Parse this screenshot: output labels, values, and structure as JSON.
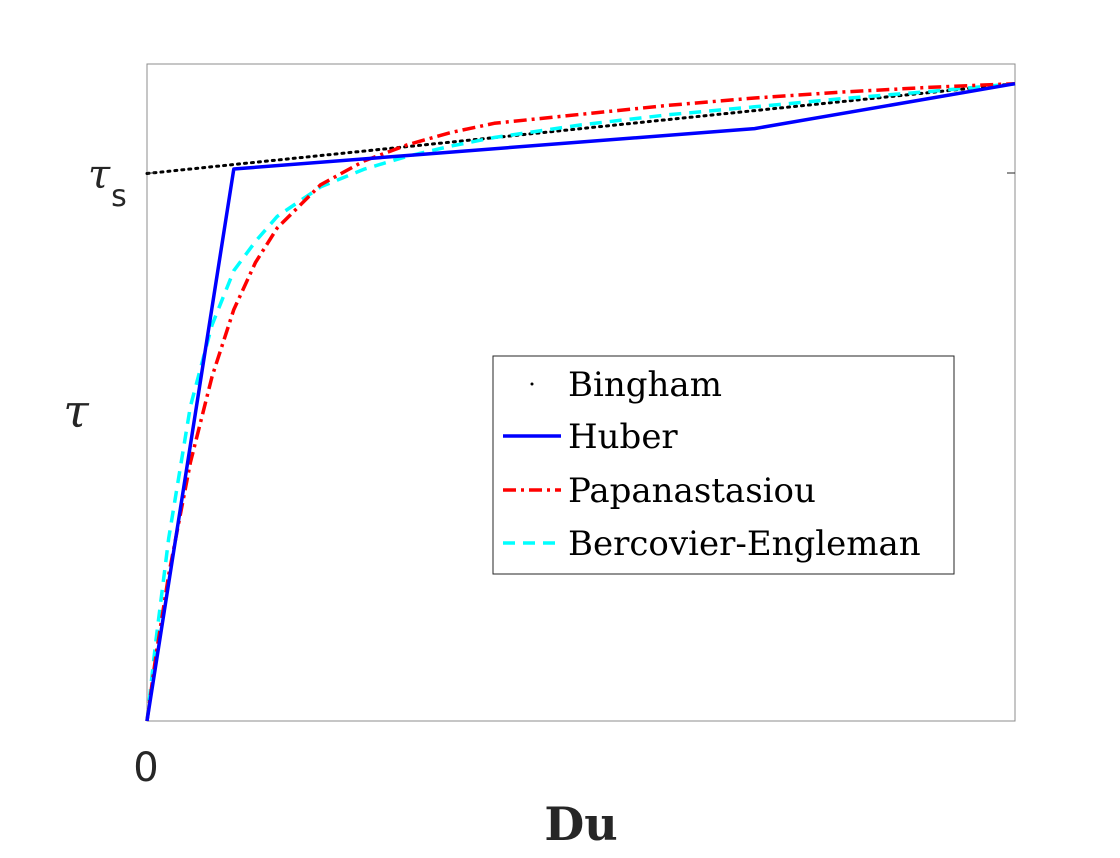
{
  "chart_data": {
    "type": "line",
    "xlabel": "Du",
    "ylabel": "τ",
    "y_tick_label": {
      "symbol": "τ",
      "subscript": "s"
    },
    "x_tick_labels": [
      "0"
    ],
    "xlim": [
      0,
      1
    ],
    "ylim": [
      0,
      1.2
    ],
    "grid": false,
    "legend_position": "center-right",
    "series": [
      {
        "name": "Bingham",
        "style": "dotted",
        "color": "#000000",
        "x": [
          0,
          0.1,
          0.3,
          0.5,
          0.7,
          1.0
        ],
        "y": [
          1.0,
          1.0164,
          1.0492,
          1.082,
          1.1148,
          1.164
        ]
      },
      {
        "name": "Huber",
        "style": "solid",
        "color": "#0000ff",
        "x": [
          0,
          0.1,
          0.3,
          0.5,
          0.7,
          1.0
        ],
        "y": [
          0,
          1.0082,
          1.0328,
          1.0575,
          1.0821,
          1.164
        ]
      },
      {
        "name": "Papanastasiou",
        "style": "dashdot",
        "color": "#ff0000",
        "x": [
          0,
          0.01,
          0.025,
          0.05,
          0.075,
          0.1,
          0.125,
          0.15,
          0.2,
          0.25,
          0.3,
          0.35,
          0.4,
          0.5,
          0.6,
          0.7,
          0.8,
          0.9,
          1.0
        ],
        "y": [
          0,
          0.1165,
          0.267,
          0.4721,
          0.6294,
          0.7515,
          0.8376,
          0.9005,
          0.9793,
          1.0229,
          1.0524,
          1.0749,
          1.0916,
          1.1082,
          1.1244,
          1.1379,
          1.1486,
          1.1573,
          1.164
        ]
      },
      {
        "name": "Bercovier-Engleman",
        "style": "dashed",
        "color": "#00ffff",
        "x": [
          0,
          0.01,
          0.025,
          0.05,
          0.075,
          0.1,
          0.125,
          0.15,
          0.2,
          0.25,
          0.3,
          0.35,
          0.4,
          0.5,
          0.6,
          0.7,
          0.8,
          0.9,
          1.0
        ],
        "y": [
          0,
          0.1436,
          0.3337,
          0.5746,
          0.7236,
          0.8224,
          0.8759,
          0.9217,
          0.9755,
          1.0078,
          1.0315,
          1.05,
          1.0657,
          1.0887,
          1.1072,
          1.1219,
          1.1367,
          1.1495,
          1.164
        ]
      }
    ]
  }
}
